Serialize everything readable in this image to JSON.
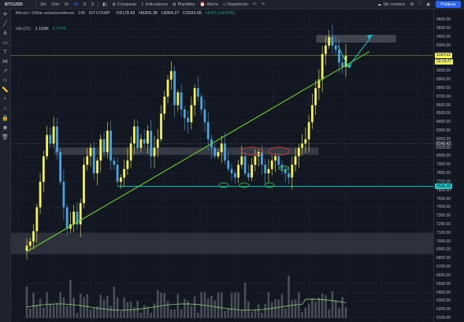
{
  "topbar": {
    "symbol": "BTCUSD",
    "intervals": [
      "3m",
      "15m",
      "1h",
      "4h",
      "D",
      "S"
    ],
    "compare_label": "Comparar",
    "indicators_label": "Indicadores",
    "templates_label": "Plantillas",
    "alert_label": "Alerta",
    "replay_label": "Repetición",
    "layout_name": "Sin nombre",
    "publish_label": "Publicar"
  },
  "legend": {
    "title": "Bitcoin / Dólar estadounidense",
    "interval": "240",
    "exchange": "BITSTAMP",
    "open": "O9178.42",
    "high": "H9206.38",
    "low": "L9094.27",
    "close": "C9184.99",
    "change": "+6.57 (+0.07%)"
  },
  "volume": {
    "label": "Vol (21)",
    "value": "1.159K",
    "ma": "1.777K"
  },
  "price_axis": {
    "ticks": [
      "9600.00",
      "9500.00",
      "9400.00",
      "9300.00",
      "9200.00",
      "9100.00",
      "9000.00",
      "8900.00",
      "8800.00",
      "8700.00",
      "8600.00",
      "8500.00",
      "8400.00",
      "8300.00",
      "8200.00",
      "8100.00",
      "8000.00",
      "7900.00",
      "7800.00",
      "7700.00",
      "7600.00",
      "7500.00",
      "7400.00",
      "7300.00",
      "7200.00",
      "7100.00",
      "7000.00",
      "6900.00",
      "6800.00",
      "6700.00",
      "6600.00",
      "6500.00",
      "6400.00",
      "6300.00",
      "6200.00",
      "6100.00"
    ],
    "current_price": "9184.99",
    "countdown": "02:23:47",
    "level_mid": "8145.42",
    "level_support": "7646.20"
  },
  "colors": {
    "bg": "#131722",
    "candle_up": "#f5f251",
    "candle_down": "#4aa3df",
    "trendline": "#6ad02a",
    "support": "#19c9c9",
    "zone": "#787b86",
    "circle_green": "#2fa84b",
    "circle_red": "#c43b3b",
    "volume_ma": "#8bd37a"
  },
  "chart_data": {
    "type": "candlestick",
    "symbol": "BTCUSD",
    "interval": "240",
    "ylim": [
      6100,
      9650
    ],
    "close_path": [
      6950,
      7000,
      7120,
      7400,
      7700,
      8000,
      8250,
      8150,
      8350,
      8050,
      7700,
      7400,
      7150,
      7200,
      7350,
      7200,
      7450,
      7900,
      8000,
      8100,
      7800,
      7950,
      8200,
      8050,
      8300,
      7950,
      7900,
      7700,
      7750,
      7850,
      7950,
      8150,
      8350,
      8100,
      8200,
      8150,
      8300,
      8000,
      8100,
      8200,
      8500,
      8700,
      8900,
      9000,
      8600,
      8750,
      8550,
      8450,
      8400,
      8600,
      8800,
      8700,
      8550,
      8400,
      8200,
      8100,
      8000,
      8050,
      8150,
      7950,
      7850,
      7800,
      7750,
      7900,
      8000,
      7800,
      7750,
      7900,
      8000,
      8050,
      7900,
      7800,
      7850,
      7950,
      8000,
      7900,
      7850,
      7800,
      7750,
      7900,
      8000,
      8100,
      8150,
      8200,
      8400,
      8600,
      8800,
      8900,
      9200,
      9300,
      9400,
      9300,
      9250,
      9100,
      9050,
      9180
    ]
  }
}
